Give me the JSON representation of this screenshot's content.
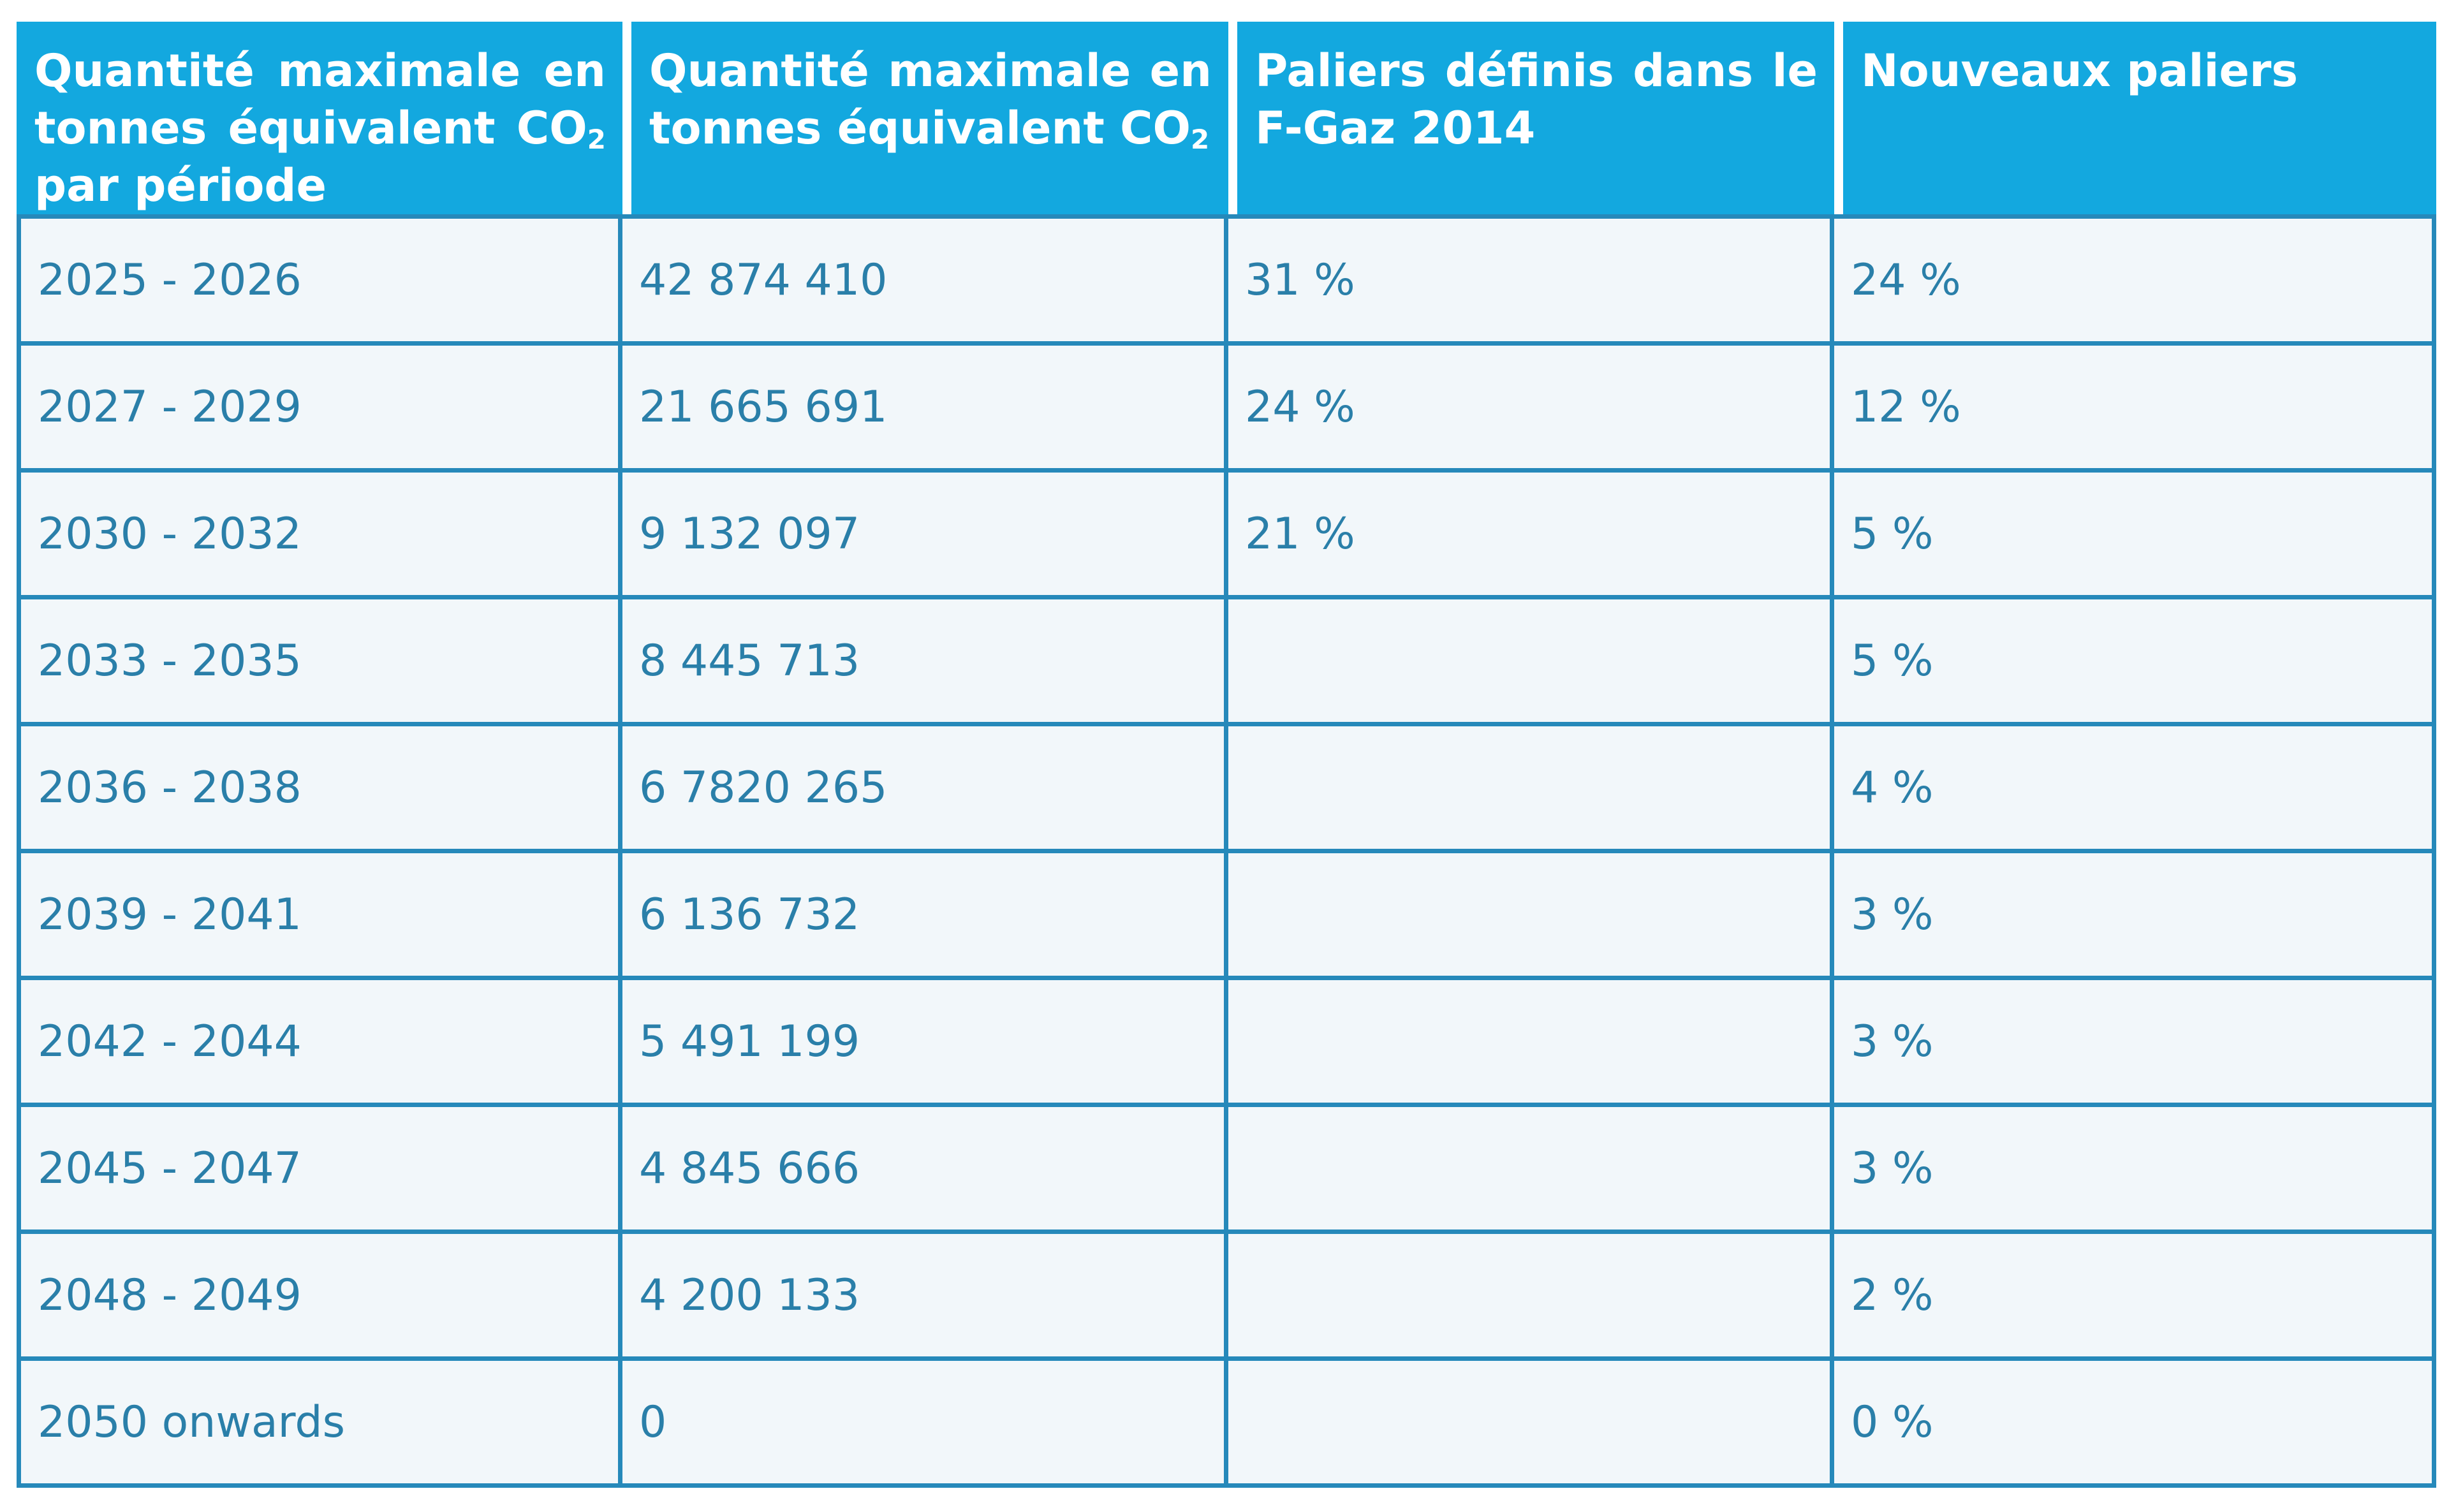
{
  "table": {
    "headers": [
      {
        "main": "Quantité maximale en tonnes équivalent CO",
        "sub": "2",
        "after": " par période"
      },
      {
        "main": "Quantité maximale en tonnes équivalent CO",
        "sub": "2",
        "after": ""
      },
      {
        "main": "Paliers définis dans le F-Gaz 2014",
        "sub": "",
        "after": ""
      },
      {
        "main": "Nouveaux paliers",
        "sub": "",
        "after": ""
      }
    ],
    "rows": [
      [
        "2025 - 2026",
        "42 874 410",
        "31 %",
        "24 %"
      ],
      [
        "2027 - 2029",
        "21 665 691",
        "24 %",
        "12 %"
      ],
      [
        "2030 - 2032",
        "9 132 097",
        "21 %",
        "5 %"
      ],
      [
        "2033 - 2035",
        "8 445 713",
        "",
        "5 %"
      ],
      [
        "2036 - 2038",
        "6 7820 265",
        "",
        "4 %"
      ],
      [
        "2039 - 2041",
        "6 136 732",
        "",
        "3 %"
      ],
      [
        "2042 - 2044",
        "5 491 199",
        "",
        "3 %"
      ],
      [
        "2045 - 2047",
        "4 845 666",
        "",
        "3 %"
      ],
      [
        "2048 - 2049",
        "4 200 133",
        "",
        "2 %"
      ],
      [
        "2050 onwards",
        "0",
        "",
        "0 %"
      ]
    ]
  },
  "colors": {
    "header_bg": "#13a8df",
    "header_text": "#ffffff",
    "cell_bg": "#f2f7fa",
    "cell_text": "#2a7fa9",
    "grid": "#2689ba"
  }
}
